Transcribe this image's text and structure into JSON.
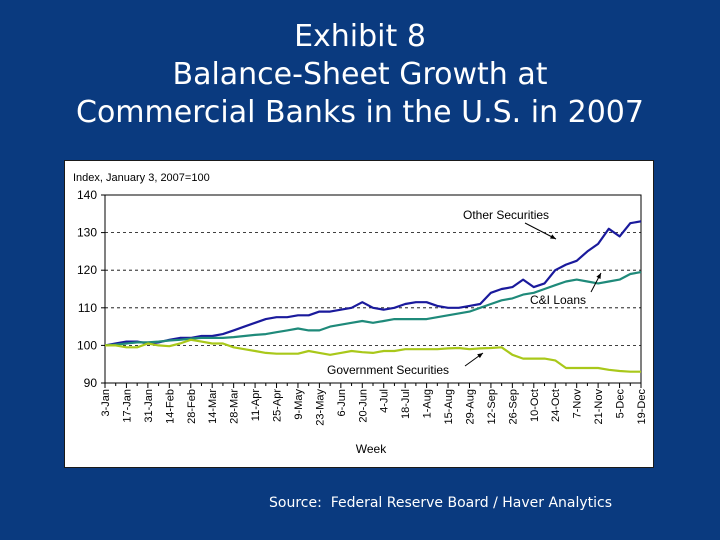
{
  "title": {
    "line1": "Exhibit 8",
    "line2": "Balance-Sheet Growth at",
    "line3": "Commercial Banks in the U.S. in 2007"
  },
  "source": "Source:  Federal Reserve Board / Haver Analytics",
  "colors": {
    "background": "#0a3a7f",
    "other_securities": "#1a1a9c",
    "ci_loans": "#1f8a7a",
    "government_securities": "#a9c81a"
  },
  "chart_data": {
    "type": "line",
    "subtitle": "Index, January 3, 2007=100",
    "xlabel": "Week",
    "ylabel": "",
    "ylim": [
      90,
      140
    ],
    "yticks": [
      90,
      100,
      110,
      120,
      130,
      140
    ],
    "gridlines": [
      100,
      110,
      120,
      130
    ],
    "grid_style": "dashed",
    "x_count": 51,
    "x_tick_labels": [
      "3-Jan",
      "17-Jan",
      "31-Jan",
      "14-Feb",
      "28-Feb",
      "14-Mar",
      "28-Mar",
      "11-Apr",
      "25-Apr",
      "9-May",
      "23-May",
      "6-Jun",
      "20-Jun",
      "4-Jul",
      "18-Jul",
      "1-Aug",
      "15-Aug",
      "29-Aug",
      "12-Sep",
      "26-Sep",
      "10-Oct",
      "24-Oct",
      "7-Nov",
      "21-Nov",
      "5-Dec",
      "19-Dec"
    ],
    "series": [
      {
        "name": "Other Securities",
        "color": "#1a1a9c",
        "values": [
          100,
          100.5,
          101,
          101,
          100.5,
          100.8,
          101.5,
          102,
          102,
          102.5,
          102.5,
          103,
          104,
          105,
          106,
          107,
          107.5,
          107.5,
          108,
          108,
          109,
          109,
          109.5,
          110,
          111.5,
          110,
          109.5,
          110,
          111,
          111.5,
          111.5,
          110.5,
          110,
          110,
          110.5,
          111,
          114,
          115,
          115.5,
          117.5,
          115.5,
          116.5,
          120,
          121.5,
          122.5,
          125,
          127,
          131,
          129,
          132.5,
          133
        ]
      },
      {
        "name": "C&I Loans",
        "color": "#1f8a7a",
        "values": [
          100,
          100.2,
          100.5,
          100.8,
          100.8,
          101,
          101.3,
          101.5,
          101.8,
          102,
          102,
          102,
          102.2,
          102.5,
          102.8,
          103,
          103.5,
          104,
          104.5,
          104,
          104,
          105,
          105.5,
          106,
          106.5,
          106,
          106.5,
          107,
          107,
          107,
          107,
          107.5,
          108,
          108.5,
          109,
          110,
          111,
          112,
          112.5,
          113.5,
          114,
          115,
          116,
          117,
          117.5,
          117,
          116.5,
          117,
          117.5,
          119,
          119.5
        ]
      },
      {
        "name": "Government Securities",
        "color": "#a9c81a",
        "values": [
          100,
          100,
          99.5,
          99.5,
          100.5,
          100,
          99.8,
          100.5,
          101.5,
          101,
          100.5,
          100.5,
          99.5,
          99,
          98.5,
          98,
          97.8,
          97.8,
          97.8,
          98.5,
          98,
          97.5,
          98,
          98.5,
          98.2,
          98,
          98.5,
          98.5,
          99,
          99,
          99,
          99,
          99.2,
          99.3,
          99,
          99.2,
          99.3,
          99.5,
          97.5,
          96.5,
          96.5,
          96.5,
          96,
          94,
          94,
          94,
          94,
          93.5,
          93.2,
          93,
          93
        ]
      }
    ],
    "annotations": [
      "Other Securities",
      "C&I Loans",
      "Government Securities"
    ]
  }
}
